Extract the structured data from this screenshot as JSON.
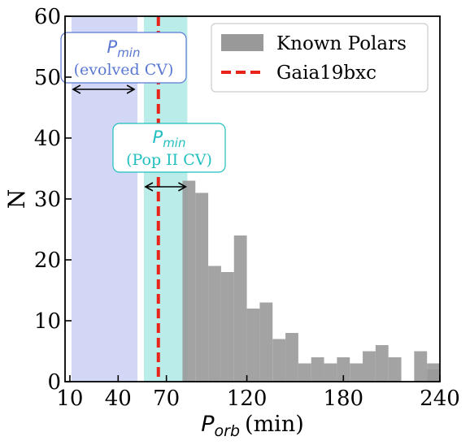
{
  "chart_data": {
    "type": "bar",
    "xlabel_symbol": "P",
    "xlabel_subscript": "orb",
    "xlabel_unit": "(min)",
    "ylabel": "N",
    "xlim": [
      7,
      240
    ],
    "ylim": [
      0,
      60
    ],
    "xticks": [
      10,
      40,
      70,
      120,
      180,
      240
    ],
    "yticks": [
      0,
      10,
      20,
      30,
      40,
      50,
      60
    ],
    "bin_width": 8,
    "bins_start": [
      80,
      88,
      96,
      104,
      112,
      120,
      128,
      136,
      144,
      152,
      160,
      168,
      176,
      184,
      192,
      200,
      208,
      216,
      224,
      232
    ],
    "series": [
      {
        "name": "Known Polars",
        "color": "#999999",
        "values": [
          33,
          31,
          19,
          18,
          24,
          12,
          13,
          7,
          8,
          3,
          4,
          3,
          4,
          3,
          5,
          6,
          4,
          0,
          5,
          3
        ]
      }
    ],
    "extra_bars": [
      {
        "x_start": 232,
        "x_end": 240,
        "value": 2
      }
    ],
    "marker": {
      "name": "Gaia19bxc",
      "x": 65,
      "color": "#e8231a",
      "style": "dashed"
    },
    "bands": [
      {
        "id": "evolved",
        "x_start": 11,
        "x_end": 52,
        "color": "#c9d0f3",
        "label_sub": "min",
        "label_symbol": "P",
        "label_line2": "(evolved CV)",
        "text_color": "#5a78d2",
        "arrow_from": 12,
        "arrow_to": 50,
        "arrow_y": 48
      },
      {
        "id": "popII",
        "x_start": 56,
        "x_end": 83,
        "color": "#aeeae6",
        "label_sub": "min",
        "label_symbol": "P",
        "label_line2": "(Pop II CV)",
        "text_color": "#21bfbf",
        "arrow_from": 57,
        "arrow_to": 82,
        "arrow_y": 32
      }
    ],
    "legend": {
      "placement": "top-right",
      "entries": [
        "Known Polars",
        "Gaia19bxc"
      ]
    },
    "grid": false
  }
}
